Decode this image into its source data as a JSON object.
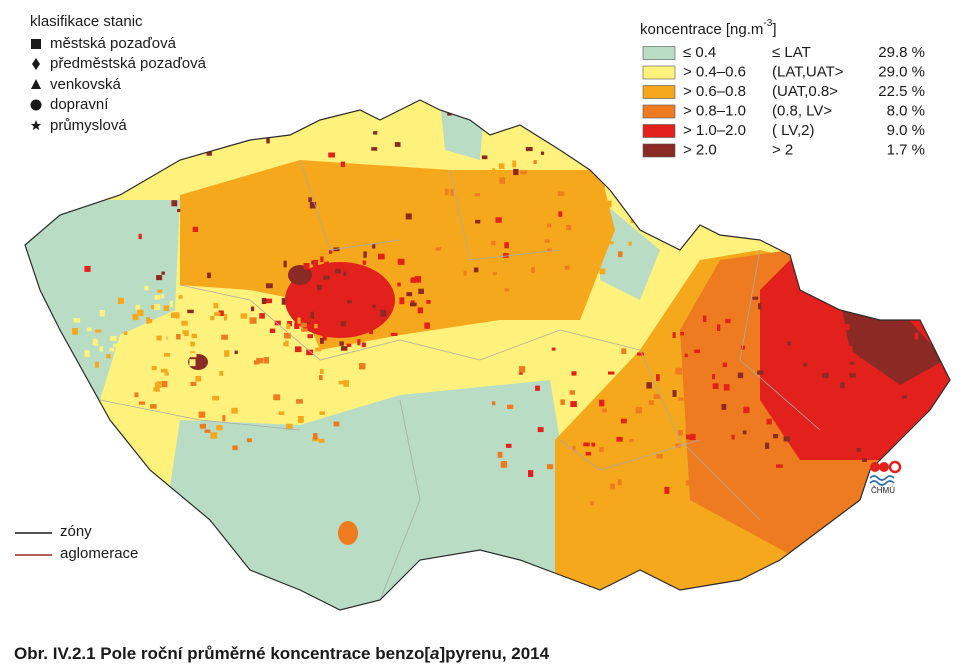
{
  "station_legend": {
    "title": "klasifikace stanic",
    "items": [
      "městská pozaďová",
      "předměstská pozaďová",
      "venkovská",
      "dopravní",
      "průmyslová"
    ]
  },
  "concentration_legend": {
    "title_prefix": "koncentrace [ng.m",
    "title_exponent": "-3",
    "title_suffix": "]",
    "rows": [
      {
        "range": "≤ 0.4",
        "class": "≤ LAT",
        "share": "29.8 %",
        "color": "#b8dcc4"
      },
      {
        "range": "> 0.4–0.6",
        "class": "(LAT,UAT>",
        "share": "29.0 %",
        "color": "#fff27c"
      },
      {
        "range": "> 0.6–0.8",
        "class": "(UAT,0.8>",
        "share": "22.5 %",
        "color": "#f6a81c"
      },
      {
        "range": "> 0.8–1.0",
        "class": "(0.8, LV>",
        "share": "8.0 %",
        "color": "#ee7b20"
      },
      {
        "range": "> 1.0–2.0",
        "class": "( LV,2)",
        "share": "9.0 %",
        "color": "#e2211c"
      },
      {
        "range": "> 2.0",
        "class": "> 2",
        "share": "1.7 %",
        "color": "#8b2a24"
      }
    ]
  },
  "line_legend": {
    "zones": "zóny",
    "agglomerations": "aglomerace"
  },
  "logo": "ČHMÚ",
  "caption": {
    "prefix": "Obr. IV.2.1  Pole roční průměrné koncentrace benzo[",
    "italic": "a",
    "suffix": "]pyrenu, 2014"
  }
}
